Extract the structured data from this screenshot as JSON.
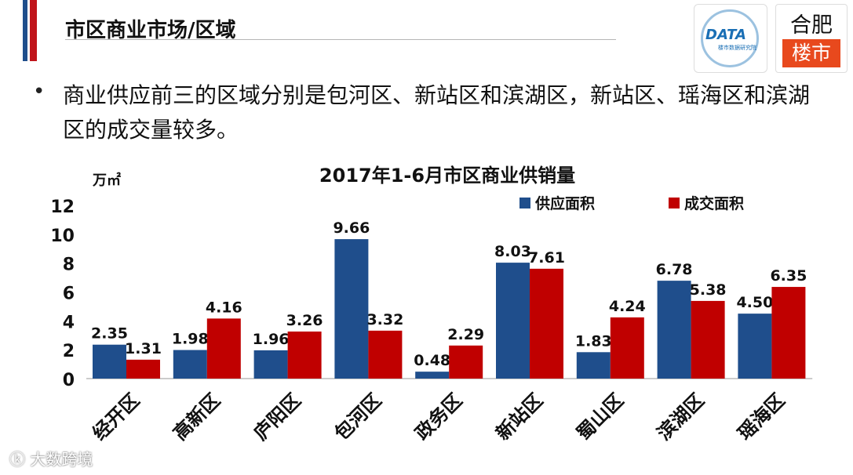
{
  "header": {
    "title": "市区商业市场/区域"
  },
  "logos": {
    "kdata": "DATA",
    "kdata_sub": "楼市数据研究院",
    "fei_top": "合肥",
    "fei_bottom": "楼市"
  },
  "body": {
    "text": "商业供应前三的区域分别是包河区、新站区和滨湖区，新站区、瑶海区和滨湖区的成交量较多。"
  },
  "watermark": "大数跨境",
  "colors": {
    "supply": "#1f4e8c",
    "deal": "#c00000"
  },
  "chart_data": {
    "type": "bar",
    "title": "2017年1-6月市区商业供销量",
    "unit": "万㎡",
    "categories": [
      "经开区",
      "高新区",
      "庐阳区",
      "包河区",
      "政务区",
      "新站区",
      "蜀山区",
      "滨湖区",
      "瑶海区"
    ],
    "series": [
      {
        "name": "供应面积",
        "values": [
          2.35,
          1.98,
          1.96,
          9.66,
          0.48,
          8.03,
          1.83,
          6.78,
          4.5
        ]
      },
      {
        "name": "成交面积",
        "values": [
          1.31,
          4.16,
          3.26,
          3.32,
          2.29,
          7.61,
          4.24,
          5.38,
          6.35
        ]
      }
    ],
    "ylim": [
      0,
      12
    ],
    "yticks": [
      "0",
      "2",
      "4",
      "6",
      "8",
      "10",
      "12"
    ],
    "legend_position": "top-right",
    "grid": false
  }
}
